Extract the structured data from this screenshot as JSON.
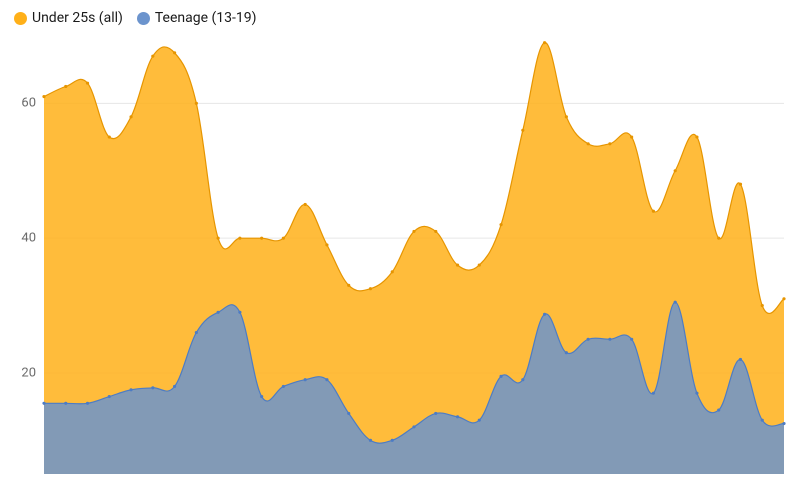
{
  "chart": {
    "type": "area",
    "background_color": "#ffffff",
    "grid_color": "#e6e6e6",
    "ylim": [
      5,
      70
    ],
    "ytick_labels": [
      20,
      40,
      60
    ],
    "ytick_fontsize": 13,
    "ytick_color": "#6b6b6b",
    "line_width": 1.2,
    "marker_radius": 1.6,
    "fill_opacity": 0.85,
    "legend_fontsize": 14,
    "legend_position": "top-left",
    "series": [
      {
        "id": "under25",
        "label": "Under 25s (all)",
        "color": "#ffb019",
        "line_color": "#e69500",
        "marker_color": "#e69500",
        "values": [
          61,
          62.5,
          63,
          55,
          58,
          67,
          67.5,
          60,
          40,
          40,
          40,
          40,
          45,
          39,
          33,
          32.5,
          35,
          41,
          41,
          36,
          36,
          42,
          56,
          69,
          58,
          54,
          54,
          55,
          44,
          50,
          55,
          40,
          48,
          30,
          31
        ]
      },
      {
        "id": "teenage",
        "label": "Teenage (13-19)",
        "color": "#6c94cd",
        "line_color": "#4d7cc4",
        "marker_color": "#4d7cc4",
        "values": [
          15.5,
          15.5,
          15.5,
          16.5,
          17.5,
          17.8,
          18,
          26,
          29,
          29,
          16.5,
          18,
          19,
          19,
          14,
          10,
          10,
          12,
          14,
          13.5,
          13,
          19.5,
          19,
          28.7,
          23,
          25,
          25,
          25,
          17,
          30.5,
          17,
          14.5,
          22,
          13,
          12.5
        ]
      }
    ]
  }
}
